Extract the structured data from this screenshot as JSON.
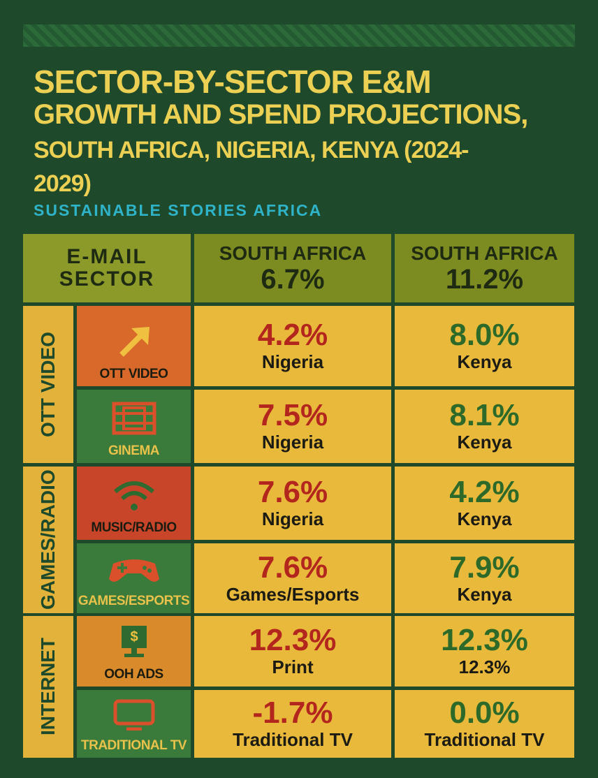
{
  "title_lines": [
    "SECTOR-BY-SECTOR E&M",
    "GROWTH AND SPEND PROJECTIONS,",
    "SOUTH AFRICA, NIGERIA, KENYA (2024-",
    "2029)"
  ],
  "subtitle": "SUSTAINABLE STORIES AFRICA",
  "header": {
    "corner": [
      "E-MAIL",
      "SECTOR"
    ],
    "columns": [
      {
        "label": "SOUTH AFRICA",
        "value": "6.7%"
      },
      {
        "label": "SOUTH AFRICA",
        "value": "11.2%"
      }
    ]
  },
  "groups": [
    {
      "label": "OTT VIDEO",
      "rows": [
        {
          "label": "OTT VIDEO",
          "cells": [
            {
              "value": "4.2%",
              "sub": "Nigeria"
            },
            {
              "value": "8.0%",
              "sub": "Kenya"
            }
          ]
        },
        {
          "label": "GINEMA",
          "cells": [
            {
              "value": "7.5%",
              "sub": "Nigeria"
            },
            {
              "value": "8.1%",
              "sub": "Kenya"
            }
          ]
        }
      ]
    },
    {
      "label": "GAMES/RADIO",
      "rows": [
        {
          "label": "MUSIC/RADIO",
          "cells": [
            {
              "value": "7.6%",
              "sub": "Nigeria"
            },
            {
              "value": "4.2%",
              "sub": "Kenya"
            }
          ]
        },
        {
          "label": "GAMES/ESPORTS",
          "cells": [
            {
              "value": "7.6%",
              "sub": "Games/Esports"
            },
            {
              "value": "7.9%",
              "sub": "Kenya"
            }
          ]
        }
      ]
    },
    {
      "label": "INTERNET",
      "rows": [
        {
          "label": "OOH ADS",
          "cells": [
            {
              "value": "12.3%",
              "sub": "Print"
            },
            {
              "value": "12.3%",
              "sub": "12.3%"
            }
          ]
        },
        {
          "label": "TRADITIONAL TV",
          "cells": [
            {
              "value": "-1.7%",
              "sub": "Traditional TV"
            },
            {
              "value": "0.0%",
              "sub": "Traditional TV"
            }
          ]
        }
      ]
    }
  ]
}
